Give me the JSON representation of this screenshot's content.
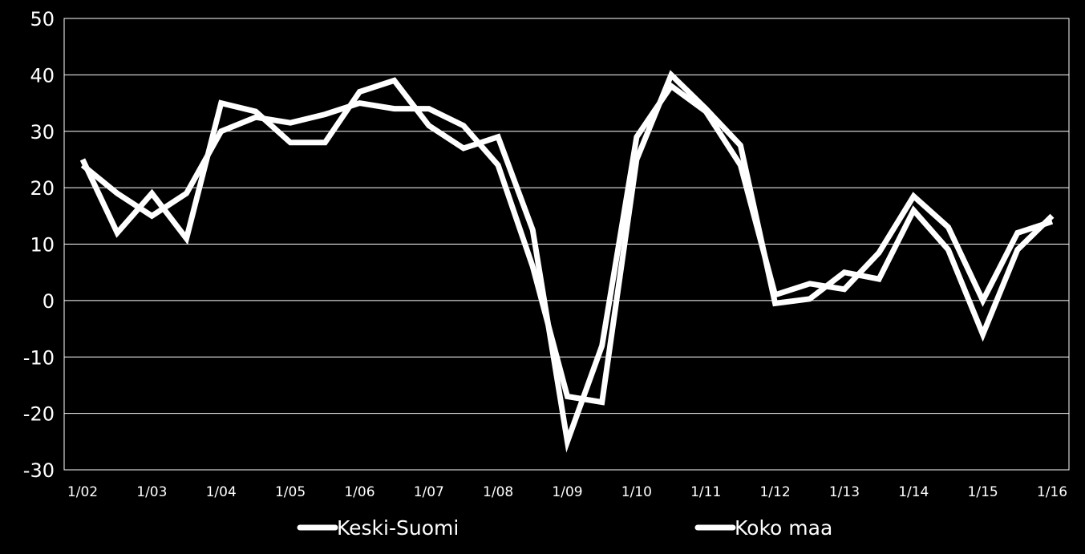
{
  "chart_data": {
    "type": "line",
    "title": "",
    "xlabel": "",
    "ylabel": "",
    "ylim": [
      -30,
      50
    ],
    "yticks": [
      50,
      40,
      30,
      20,
      10,
      0,
      -10,
      -20,
      -30
    ],
    "yticklabels": [
      "50",
      "40",
      "30",
      "20",
      "10",
      "0",
      "-10",
      "-20",
      "-30"
    ],
    "xticklabels": [
      "1/02",
      "1/03",
      "1/04",
      "1/05",
      "1/06",
      "1/07",
      "1/08",
      "1/09",
      "1/10",
      "1/11",
      "1/12",
      "1/13",
      "1/14",
      "1/15",
      "1/16"
    ],
    "x": [
      "1/02",
      "7/02",
      "1/03",
      "7/03",
      "1/04",
      "7/04",
      "1/05",
      "7/05",
      "1/06",
      "7/06",
      "1/07",
      "7/07",
      "1/08",
      "7/08",
      "1/09",
      "7/09",
      "1/10",
      "7/10",
      "1/11",
      "7/11",
      "1/12",
      "7/12",
      "1/13",
      "7/13",
      "1/14",
      "7/14",
      "1/15",
      "7/15",
      "1/16"
    ],
    "grid": true,
    "legend_position": "bottom",
    "series": [
      {
        "name": "Keski-Suomi",
        "color": "#ffffff",
        "values": [
          25,
          12,
          19,
          11,
          35,
          33.5,
          28,
          28,
          37,
          39,
          31,
          27,
          29,
          12.5,
          -25,
          -8,
          29,
          38,
          33.5,
          24,
          1,
          3,
          2,
          8.5,
          18.5,
          13,
          0,
          12,
          14
        ]
      },
      {
        "name": "Koko maa",
        "color": "#ffffff",
        "values": [
          24,
          19,
          15,
          19,
          30,
          32.5,
          31.5,
          33,
          35,
          34,
          34,
          31,
          24,
          6,
          -17,
          -18,
          25,
          40,
          34,
          27.5,
          -0.5,
          0.3,
          5,
          3.8,
          16,
          9,
          -6,
          9,
          15
        ]
      }
    ]
  }
}
